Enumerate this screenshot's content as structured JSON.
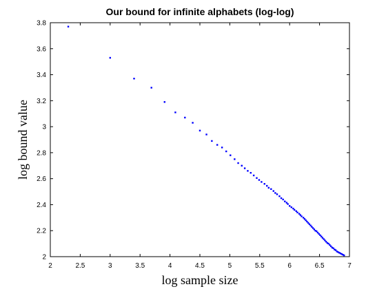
{
  "chart_data": {
    "type": "scatter",
    "title": "Our bound for infinite alphabets (log-log)",
    "xlabel": "log sample size",
    "ylabel": "log bound value",
    "xlim": [
      2,
      7
    ],
    "ylim": [
      2,
      3.8
    ],
    "xticks": [
      "2",
      "2.5",
      "3",
      "3.5",
      "4",
      "4.5",
      "5",
      "5.5",
      "6",
      "6.5",
      "7"
    ],
    "yticks": [
      "2",
      "2.2",
      "2.4",
      "2.6",
      "2.8",
      "3",
      "3.2",
      "3.4",
      "3.6",
      "3.8"
    ],
    "grid": false,
    "marker_color": "#0000ff",
    "series": [
      {
        "x": [
          2.3,
          3.0,
          3.4,
          3.69,
          3.91,
          4.09,
          4.25,
          4.38,
          4.5,
          4.61,
          4.7,
          4.79,
          4.87,
          4.94,
          5.01,
          5.08,
          5.14,
          5.2,
          5.25,
          5.3,
          5.35,
          5.4,
          5.45,
          5.49,
          5.53,
          5.58,
          5.62,
          5.65,
          5.69,
          5.73,
          5.76,
          5.79,
          5.83,
          5.86,
          5.89,
          5.92,
          5.95,
          5.97,
          6.0,
          6.03,
          6.06,
          6.08,
          6.11,
          6.13,
          6.16,
          6.18,
          6.2,
          6.23,
          6.25,
          6.27,
          6.29,
          6.31,
          6.33,
          6.35,
          6.37,
          6.39,
          6.41,
          6.43,
          6.45,
          6.47,
          6.49,
          6.51,
          6.53,
          6.55,
          6.57,
          6.59,
          6.61,
          6.63,
          6.65,
          6.67,
          6.69,
          6.71,
          6.73,
          6.75,
          6.77,
          6.79,
          6.81,
          6.83,
          6.85,
          6.87,
          6.89,
          6.91
        ],
        "y": [
          3.77,
          3.53,
          3.37,
          3.3,
          3.19,
          3.11,
          3.07,
          3.03,
          2.97,
          2.94,
          2.89,
          2.86,
          2.84,
          2.81,
          2.78,
          2.75,
          2.72,
          2.7,
          2.68,
          2.66,
          2.645,
          2.625,
          2.605,
          2.59,
          2.575,
          2.56,
          2.545,
          2.53,
          2.52,
          2.505,
          2.49,
          2.48,
          2.465,
          2.45,
          2.44,
          2.425,
          2.415,
          2.405,
          2.39,
          2.38,
          2.37,
          2.36,
          2.35,
          2.34,
          2.33,
          2.32,
          2.31,
          2.3,
          2.29,
          2.28,
          2.27,
          2.26,
          2.25,
          2.24,
          2.23,
          2.22,
          2.21,
          2.2,
          2.195,
          2.185,
          2.175,
          2.165,
          2.155,
          2.145,
          2.135,
          2.125,
          2.115,
          2.105,
          2.1,
          2.09,
          2.08,
          2.07,
          2.065,
          2.055,
          2.05,
          2.04,
          2.035,
          2.03,
          2.025,
          2.02,
          2.015,
          2.01
        ]
      }
    ]
  }
}
